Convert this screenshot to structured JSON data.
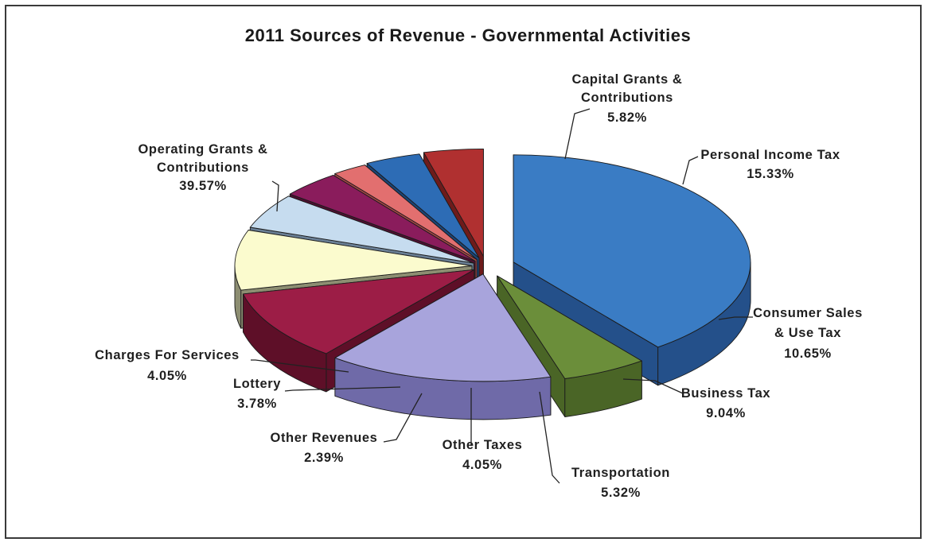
{
  "chart_data": {
    "type": "pie",
    "title": "2011 Sources of Revenue - Governmental Activities",
    "style": "3d-exploded",
    "slices": [
      {
        "key": "opgrants",
        "label": [
          "Operating Grants &",
          "Contributions"
        ],
        "value": 39.57,
        "display": "39.57%",
        "color": "#3a7cc4",
        "dark": "#24508a"
      },
      {
        "key": "capgrants",
        "label": [
          "Capital Grants &",
          "Contributions"
        ],
        "value": 5.82,
        "display": "5.82%",
        "color": "#6b8e3a",
        "dark": "#4a6526"
      },
      {
        "key": "pit",
        "label": [
          "Personal Income Tax"
        ],
        "value": 15.33,
        "display": "15.33%",
        "color": "#a8a4dc",
        "dark": "#6f6aa8"
      },
      {
        "key": "consumer",
        "label": [
          "Consumer Sales",
          "& Use Tax"
        ],
        "value": 10.65,
        "display": "10.65%",
        "color": "#9c1d46",
        "dark": "#5e0f28"
      },
      {
        "key": "business",
        "label": [
          "Business Tax"
        ],
        "value": 9.04,
        "display": "9.04%",
        "color": "#fbfbce",
        "dark": "#8d8e72"
      },
      {
        "key": "transport",
        "label": [
          "Transportation"
        ],
        "value": 5.32,
        "display": "5.32%",
        "color": "#c6dcef",
        "dark": "#6a7f95"
      },
      {
        "key": "othertax",
        "label": [
          "Other Taxes"
        ],
        "value": 4.05,
        "display": "4.05%",
        "color": "#8a1c5c",
        "dark": "#4e0f31"
      },
      {
        "key": "otherrev",
        "label": [
          "Other Revenues"
        ],
        "value": 2.39,
        "display": "2.39%",
        "color": "#e26f6f",
        "dark": "#a34545"
      },
      {
        "key": "lottery",
        "label": [
          "Lottery"
        ],
        "value": 3.78,
        "display": "3.78%",
        "color": "#2d6cb5",
        "dark": "#1b4477"
      },
      {
        "key": "charges",
        "label": [
          "Charges For Services"
        ],
        "value": 4.05,
        "display": "4.05%",
        "color": "#b03030",
        "dark": "#6e1b1b"
      }
    ]
  }
}
